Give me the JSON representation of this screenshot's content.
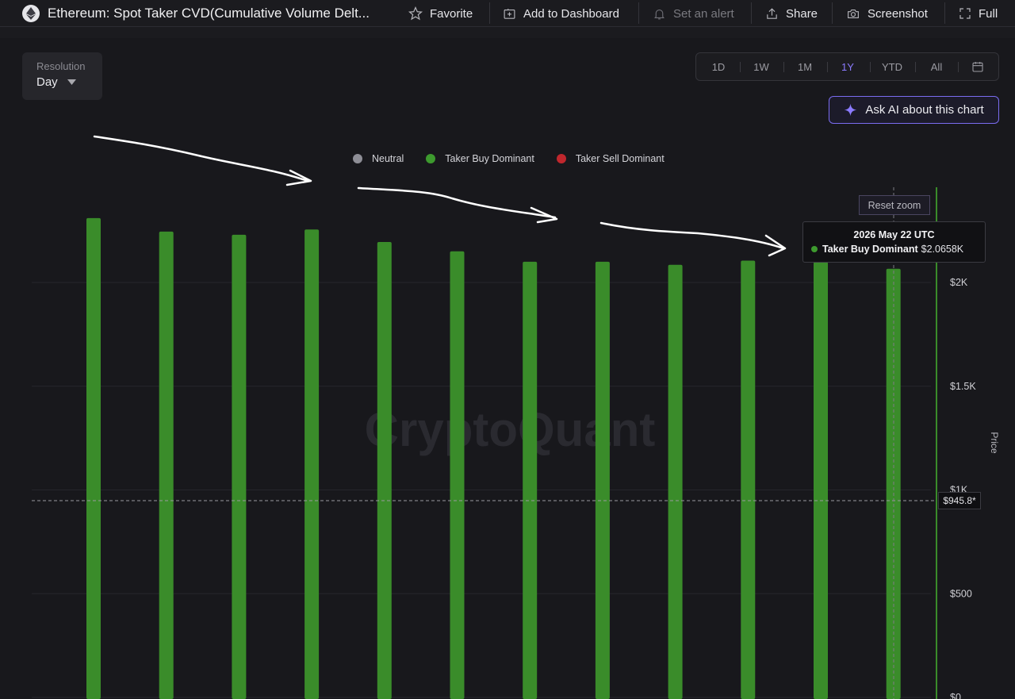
{
  "header": {
    "title": "Ethereum: Spot Taker CVD(Cumulative Volume Delt...",
    "favorite": "Favorite",
    "add_dashboard": "Add to Dashboard",
    "set_alert": "Set an alert",
    "share": "Share",
    "screenshot": "Screenshot",
    "full": "Full"
  },
  "resolution": {
    "label": "Resolution",
    "value": "Day"
  },
  "ranges": [
    "1D",
    "1W",
    "1M",
    "1Y",
    "YTD",
    "All"
  ],
  "active_range": "1Y",
  "ask_ai": "Ask AI about this chart",
  "legend": [
    {
      "name": "Neutral",
      "color": "#8e8e96"
    },
    {
      "name": "Taker Buy Dominant",
      "color": "#3d9a2e"
    },
    {
      "name": "Taker Sell Dominant",
      "color": "#c0272d"
    }
  ],
  "watermark": "CryptoQuant",
  "reset_zoom": "Reset zoom",
  "tooltip": {
    "date": "2026 May 22 UTC",
    "series": "Taker Buy Dominant",
    "value": "$2.0658K"
  },
  "price_marker": "$945.8*",
  "colors": {
    "bar": "#3a8c2a",
    "accent": "#8b7bff",
    "background": "#18181c"
  },
  "chart_data": {
    "type": "bar",
    "values": [
      2310,
      2245,
      2230,
      2255,
      2195,
      2150,
      2100,
      2100,
      2085,
      2105,
      2100,
      2066
    ],
    "ylabel": "Price",
    "y_ticks": [
      "$0",
      "$500",
      "$1K",
      "$1.5K",
      "$2K"
    ],
    "ylim": [
      0,
      2500
    ],
    "series_name": "Taker Buy Dominant",
    "reference_value": 945.8
  }
}
